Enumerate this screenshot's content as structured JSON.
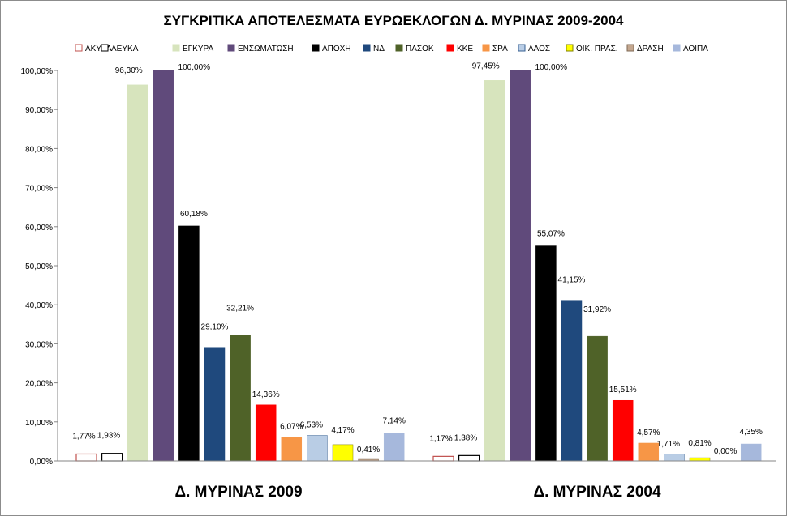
{
  "chart_data": {
    "type": "bar",
    "title": "ΣΥΓΚΡΙΤΙΚΑ ΑΠΟΤΕΛΕΣΜΑΤΑ  ΕΥΡΩΕΚΛΟΓΩΝ Δ. ΜΥΡΙΝΑΣ 2009-2004",
    "categories": [
      "Δ. ΜΥΡΙΝΑΣ 2009",
      "Δ. ΜΥΡΙΝΑΣ 2004"
    ],
    "ylim": [
      0,
      100
    ],
    "yticks": [
      "0,00%",
      "10,00%",
      "20,00%",
      "30,00%",
      "40,00%",
      "50,00%",
      "60,00%",
      "70,00%",
      "80,00%",
      "90,00%",
      "100,00%"
    ],
    "grid": false,
    "legend_position": "top",
    "series": [
      {
        "name": "ΑΚΥΡΑ",
        "color": "#ffffff",
        "stroke": "#c0504d",
        "values": [
          1.77,
          1.17
        ],
        "labels": [
          "1,77%",
          "1,17%"
        ]
      },
      {
        "name": "ΛΕΥΚΑ",
        "color": "#ffffff",
        "stroke": "#000000",
        "values": [
          1.93,
          1.38
        ],
        "labels": [
          "1,93%",
          "1,38%"
        ]
      },
      {
        "name": "ΕΓΚΥΡΑ",
        "color": "#d7e4bd",
        "stroke": "#d7e4bd",
        "values": [
          96.3,
          97.45
        ],
        "labels": [
          "96,30%",
          "97,45%"
        ]
      },
      {
        "name": "ΕΝΣΩΜΑΤΩΣΗ",
        "color": "#604a7b",
        "stroke": "#604a7b",
        "values": [
          100.0,
          100.0
        ],
        "labels": [
          "100,00%",
          "100,00%"
        ]
      },
      {
        "name": "ΑΠΟΧΗ",
        "color": "#000000",
        "stroke": "#000000",
        "values": [
          60.18,
          55.07
        ],
        "labels": [
          "60,18%",
          "55,07%"
        ]
      },
      {
        "name": "ΝΔ",
        "color": "#1f497d",
        "stroke": "#1f497d",
        "values": [
          29.1,
          41.15
        ],
        "labels": [
          "29,10%",
          "41,15%"
        ]
      },
      {
        "name": "ΠΑΣΟΚ",
        "color": "#4f6228",
        "stroke": "#4f6228",
        "values": [
          32.21,
          31.92
        ],
        "labels": [
          "32,21%",
          "31,92%"
        ]
      },
      {
        "name": "ΚΚΕ",
        "color": "#ff0000",
        "stroke": "#ff0000",
        "values": [
          14.36,
          15.51
        ],
        "labels": [
          "14,36%",
          "15,51%"
        ]
      },
      {
        "name": "ΣΡΑ",
        "color": "#f79646",
        "stroke": "#f79646",
        "values": [
          6.07,
          4.57
        ],
        "labels": [
          "6,07%",
          "4,57%"
        ]
      },
      {
        "name": "ΛΑΟΣ",
        "color": "#b9cde5",
        "stroke": "#376092",
        "values": [
          6.53,
          1.71
        ],
        "labels": [
          "6,53%",
          "1,71%"
        ]
      },
      {
        "name": "ΟΙΚ. ΠΡΑΣ.",
        "color": "#ffff00",
        "stroke": "#7f7f00",
        "values": [
          4.17,
          0.81
        ],
        "labels": [
          "4,17%",
          "0,81%"
        ]
      },
      {
        "name": "ΔΡΑΣΗ",
        "color": "#c4a78f",
        "stroke": "#7f6a55",
        "values": [
          0.41,
          0.0
        ],
        "labels": [
          "0,41%",
          "0,00%"
        ]
      },
      {
        "name": "ΛΟΙΠΑ",
        "color": "#a6b8dc",
        "stroke": "#a6b8dc",
        "values": [
          7.14,
          4.35
        ],
        "labels": [
          "7,14%",
          "4,35%"
        ]
      }
    ]
  }
}
